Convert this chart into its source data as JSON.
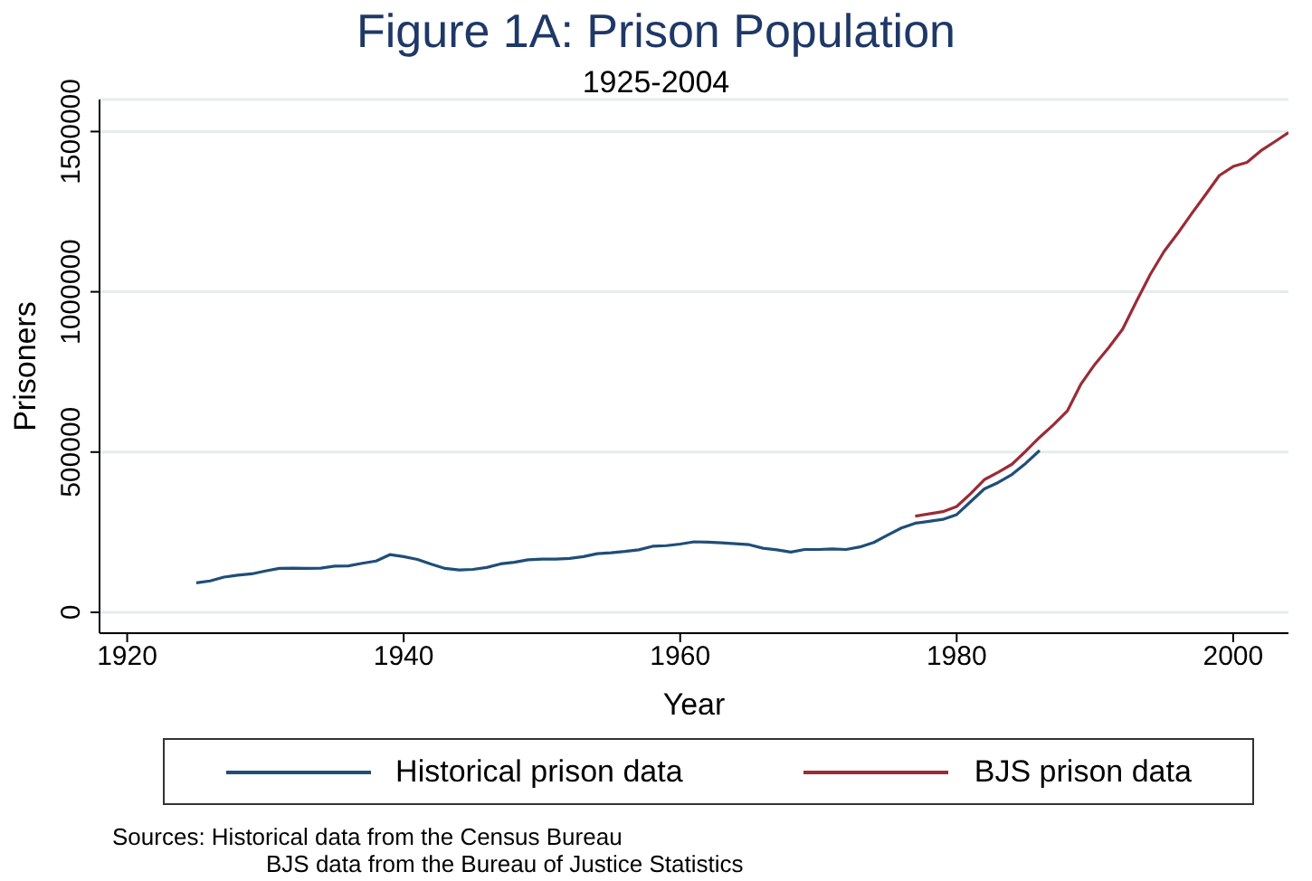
{
  "chart_data": {
    "type": "line",
    "title": "Figure 1A: Prison Population",
    "subtitle": "1925-2004",
    "xlabel": "Year",
    "ylabel": "Prisoners",
    "xlim": [
      1918,
      2004
    ],
    "xticks": [
      1920,
      1940,
      1960,
      1980,
      2000
    ],
    "ylim": [
      -65000,
      1600000
    ],
    "yticks": [
      0,
      500000,
      1000000,
      1500000
    ],
    "grid": "y",
    "legend": "bottom",
    "annotations": [
      "Sources: Historical data from the Census Bureau\nBJS data from the Bureau of Justice Statistics"
    ],
    "series": [
      {
        "name": "Historical prison data",
        "color": "#1f4e79",
        "x": [
          1925,
          1926,
          1927,
          1928,
          1929,
          1930,
          1931,
          1932,
          1933,
          1934,
          1935,
          1936,
          1937,
          1938,
          1939,
          1940,
          1941,
          1942,
          1943,
          1944,
          1945,
          1946,
          1947,
          1948,
          1949,
          1950,
          1951,
          1952,
          1953,
          1954,
          1955,
          1956,
          1957,
          1958,
          1959,
          1960,
          1961,
          1962,
          1963,
          1964,
          1965,
          1966,
          1967,
          1968,
          1969,
          1970,
          1971,
          1972,
          1973,
          1974,
          1975,
          1976,
          1977,
          1978,
          1979,
          1980,
          1981,
          1982,
          1983,
          1984,
          1985,
          1986
        ],
        "values": [
          92000,
          98000,
          110000,
          116000,
          120000,
          129000,
          137000,
          138000,
          137000,
          138000,
          144000,
          145000,
          153000,
          160000,
          180000,
          174000,
          165000,
          150000,
          137000,
          132000,
          134000,
          140000,
          151000,
          156000,
          164000,
          166000,
          166000,
          168000,
          174000,
          183000,
          186000,
          190000,
          195000,
          206000,
          208000,
          213000,
          220000,
          219000,
          217000,
          214000,
          211000,
          200000,
          195000,
          188000,
          196000,
          196000,
          198000,
          196000,
          204000,
          218000,
          241000,
          263000,
          278000,
          284000,
          290000,
          305000,
          345000,
          385000,
          405000,
          430000,
          465000,
          505000
        ]
      },
      {
        "name": "BJS prison data",
        "color": "#9b2b35",
        "x": [
          1977,
          1978,
          1979,
          1980,
          1981,
          1982,
          1983,
          1984,
          1985,
          1986,
          1987,
          1988,
          1989,
          1990,
          1991,
          1992,
          1993,
          1994,
          1995,
          1996,
          1997,
          1998,
          1999,
          2000,
          2001,
          2002,
          2003,
          2004
        ],
        "values": [
          300000,
          307000,
          314000,
          330000,
          370000,
          414000,
          437000,
          462000,
          503000,
          546000,
          585000,
          628000,
          713000,
          774000,
          826000,
          883000,
          970000,
          1054000,
          1126000,
          1183000,
          1244000,
          1303000,
          1363000,
          1391000,
          1404000,
          1440000,
          1468000,
          1497000
        ]
      }
    ]
  }
}
